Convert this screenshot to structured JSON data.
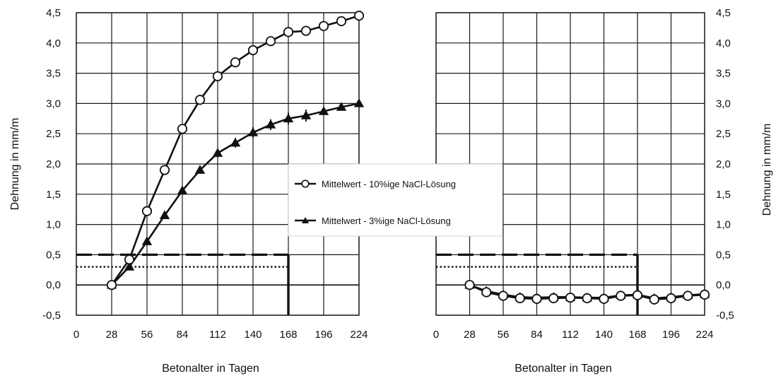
{
  "legend": {
    "items": [
      {
        "label": "Mittelwert - 10%ige NaCl-Lösung",
        "marker": "circle-open"
      },
      {
        "label": "Mittelwert - 3%ige NaCl-Lösung",
        "marker": "triangle-filled"
      }
    ]
  },
  "chart_data": [
    {
      "type": "line",
      "xlabel": "Betonalter in Tagen",
      "ylabel": "Dehnung in mm/m",
      "xlim": [
        0,
        224
      ],
      "ylim": [
        -0.5,
        4.5
      ],
      "xticks": [
        "0",
        "28",
        "56",
        "84",
        "112",
        "140",
        "168",
        "196",
        "224"
      ],
      "yticks": [
        "-0,5",
        "0,0",
        "0,5",
        "1,0",
        "1,5",
        "2,0",
        "2,5",
        "3,0",
        "3,5",
        "4,0",
        "4,5"
      ],
      "grid": true,
      "yaxis_side": "left",
      "legend_position": "right",
      "series": [
        {
          "name": "Mittelwert - 10%ige NaCl-Lösung",
          "marker": "circle-open",
          "x": [
            28,
            42,
            56,
            70,
            84,
            98,
            112,
            126,
            140,
            154,
            168,
            182,
            196,
            210,
            224
          ],
          "y": [
            0.0,
            0.42,
            1.22,
            1.9,
            2.58,
            3.06,
            3.45,
            3.68,
            3.88,
            4.03,
            4.18,
            4.2,
            4.28,
            4.36,
            4.45
          ]
        },
        {
          "name": "Mittelwert - 3%ige NaCl-Lösung",
          "marker": "triangle-filled",
          "x": [
            28,
            42,
            56,
            70,
            84,
            98,
            112,
            126,
            140,
            154,
            168,
            182,
            196,
            210,
            224
          ],
          "y": [
            0.0,
            0.3,
            0.72,
            1.15,
            1.56,
            1.9,
            2.18,
            2.35,
            2.52,
            2.65,
            2.75,
            2.8,
            2.87,
            2.94,
            3.0
          ],
          "error": [
            0.02,
            0.03,
            0.04,
            0.04,
            0.05,
            0.06,
            0.07,
            0.08,
            0.09,
            0.09,
            0.1,
            0.1,
            0.06,
            0.03,
            0.02
          ]
        }
      ],
      "reference_lines": [
        {
          "style": "dashed",
          "y": 0.5,
          "x_end": 168
        },
        {
          "style": "dotted",
          "y": 0.3,
          "x_end": 168
        },
        {
          "style": "solid-vertical",
          "x": 168,
          "y_from": 0.5,
          "y_to": -0.5
        }
      ]
    },
    {
      "type": "line",
      "xlabel": "Betonalter in Tagen",
      "ylabel": "Dehnung in mm/m",
      "xlim": [
        0,
        224
      ],
      "ylim": [
        -0.5,
        4.5
      ],
      "xticks": [
        "0",
        "28",
        "56",
        "84",
        "112",
        "140",
        "168",
        "196",
        "224"
      ],
      "yticks": [
        "-0,5",
        "0,0",
        "0,5",
        "1,0",
        "1,5",
        "2,0",
        "2,5",
        "3,0",
        "3,5",
        "4,0",
        "4,5"
      ],
      "grid": true,
      "yaxis_side": "right",
      "series": [
        {
          "name": "Mittelwert - 10%ige NaCl-Lösung",
          "marker": "circle-open",
          "x": [
            28,
            42,
            56,
            70,
            84,
            98,
            112,
            126,
            140,
            154,
            168,
            182,
            196,
            210,
            224
          ],
          "y": [
            0.0,
            -0.12,
            -0.18,
            -0.22,
            -0.23,
            -0.22,
            -0.21,
            -0.22,
            -0.23,
            -0.18,
            -0.17,
            -0.24,
            -0.22,
            -0.18,
            -0.16
          ]
        },
        {
          "name": "Mittelwert - 3%ige NaCl-Lösung",
          "marker": "triangle-filled",
          "x": [
            28,
            42,
            56,
            70,
            84,
            98,
            112,
            126,
            140,
            154,
            168,
            182,
            196,
            210,
            224
          ],
          "y": [
            0.0,
            -0.1,
            -0.16,
            -0.2,
            -0.21,
            -0.2,
            -0.2,
            -0.21,
            -0.21,
            -0.17,
            -0.16,
            -0.22,
            -0.2,
            -0.17,
            -0.15
          ]
        }
      ],
      "reference_lines": [
        {
          "style": "dashed",
          "y": 0.5,
          "x_end": 168
        },
        {
          "style": "dotted",
          "y": 0.3,
          "x_end": 168
        },
        {
          "style": "solid-vertical",
          "x": 168,
          "y_from": 0.5,
          "y_to": -0.5
        }
      ]
    }
  ]
}
